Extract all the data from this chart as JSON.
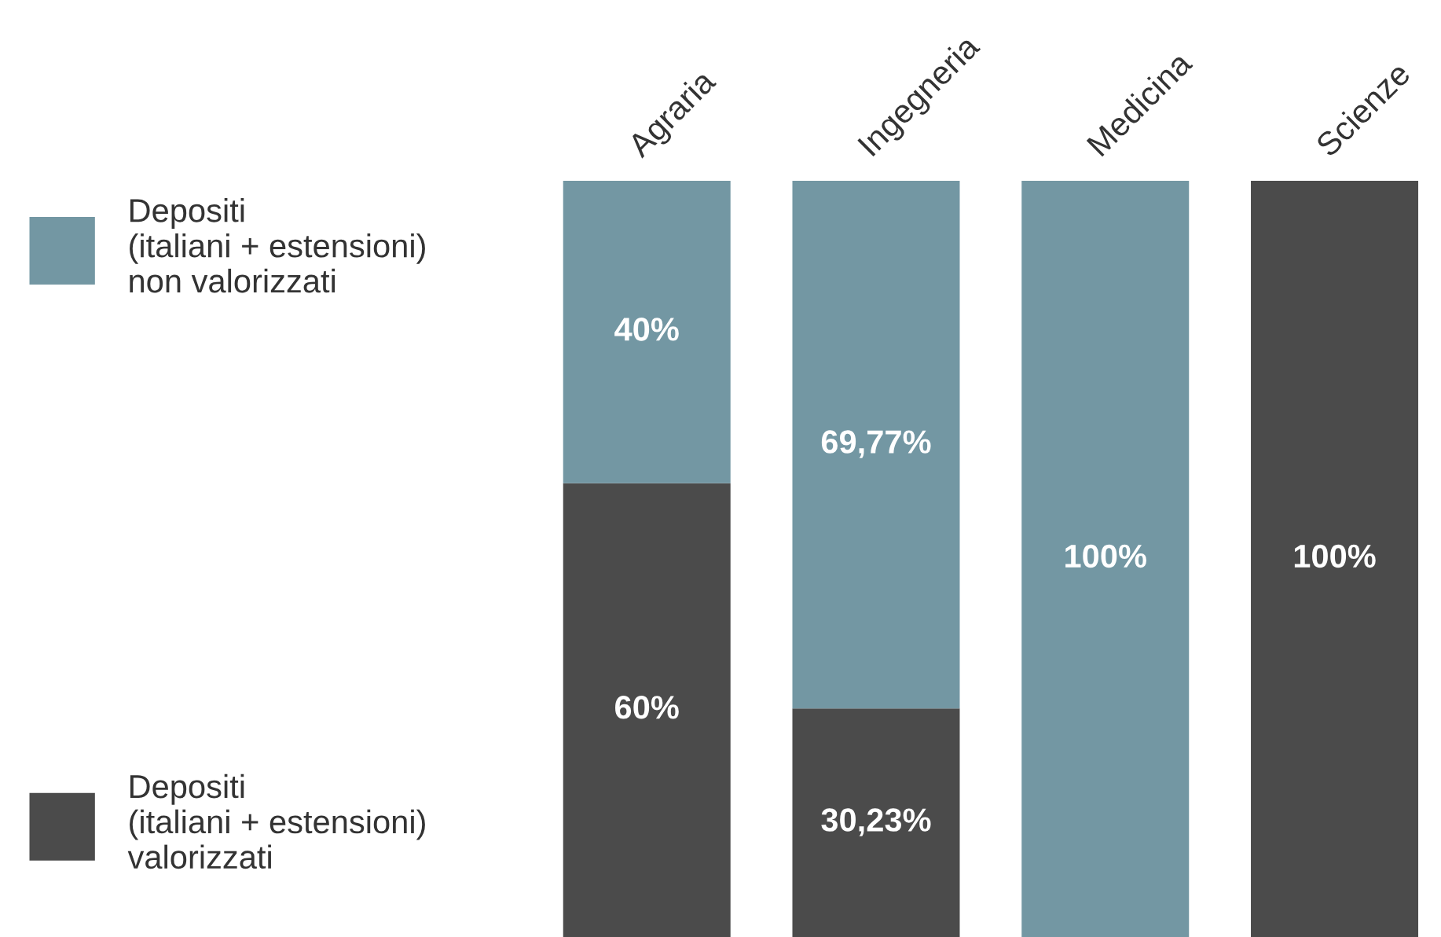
{
  "chart_data": {
    "type": "bar",
    "stacked": true,
    "categories": [
      "Agraria",
      "Ingegneria",
      "Medicina",
      "Scienze"
    ],
    "series": [
      {
        "name": "Depositi\n(italiani + estensioni)\nvalorizzati",
        "color": "#4b4b4b",
        "values": [
          60,
          30.23,
          0,
          100
        ],
        "value_labels": [
          "60%",
          "30,23%",
          null,
          "100%"
        ]
      },
      {
        "name": "Depositi\n(italiani + estensioni)\nnon valorizzati",
        "color": "#7397a3",
        "values": [
          40,
          69.77,
          100,
          0
        ],
        "value_labels": [
          "40%",
          "69,77%",
          "100%",
          null
        ]
      }
    ],
    "legend": "left",
    "grid": false
  }
}
